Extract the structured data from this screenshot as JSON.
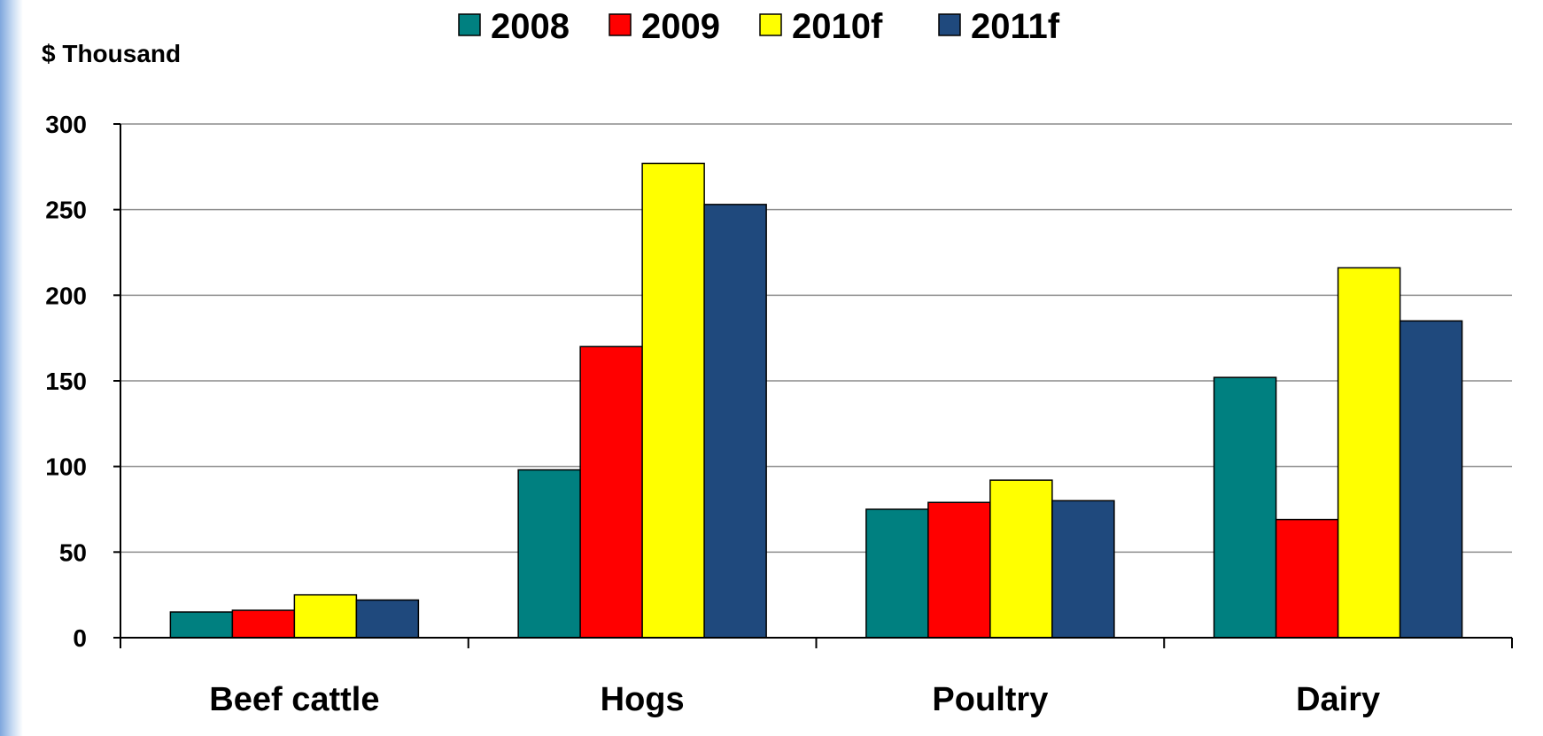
{
  "chart_data": {
    "type": "bar",
    "ylabel": "$ Thousand",
    "ylim": [
      0,
      300
    ],
    "yticks": [
      "0",
      "50",
      "100",
      "150",
      "200",
      "250",
      "300"
    ],
    "categories": [
      "Beef cattle",
      "Hogs",
      "Poultry",
      "Dairy"
    ],
    "grid": true,
    "legend_position": "top",
    "series": [
      {
        "name": "2008",
        "color": "#008080",
        "values": [
          15,
          98,
          75,
          152
        ]
      },
      {
        "name": "2009",
        "color": "#ff0000",
        "values": [
          16,
          170,
          79,
          69
        ]
      },
      {
        "name": "2010f",
        "color": "#ffff00",
        "values": [
          25,
          277,
          92,
          216
        ]
      },
      {
        "name": "2011f",
        "color": "#1f497d",
        "values": [
          22,
          253,
          80,
          185
        ]
      }
    ]
  }
}
